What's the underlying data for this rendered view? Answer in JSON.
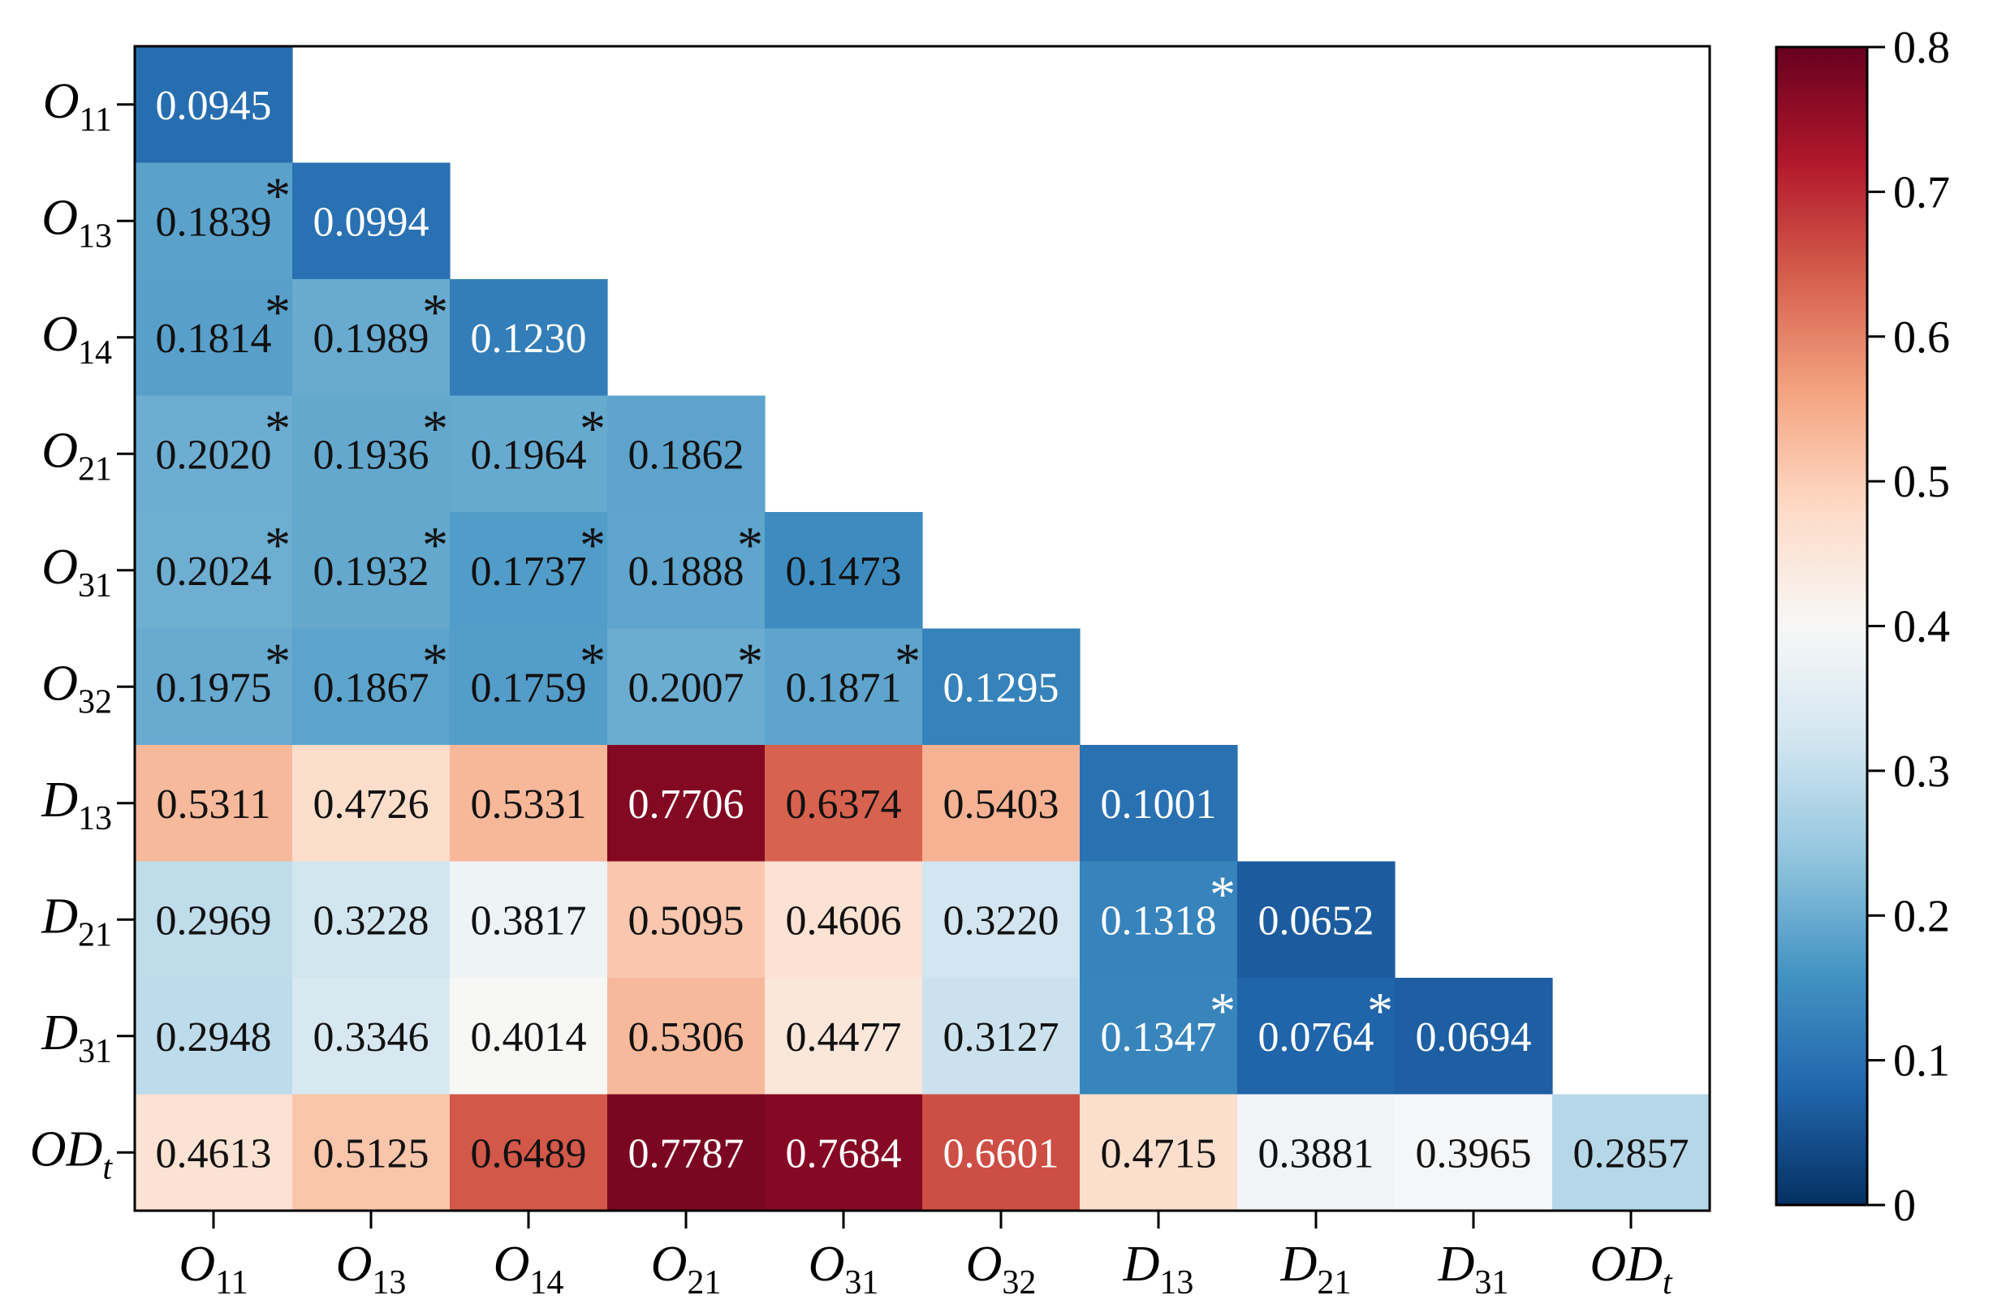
{
  "chart_data": {
    "type": "heatmap",
    "title": "",
    "xlabel": "",
    "ylabel": "",
    "row_labels": [
      {
        "main": "O",
        "sub": "11"
      },
      {
        "main": "O",
        "sub": "13"
      },
      {
        "main": "O",
        "sub": "14"
      },
      {
        "main": "O",
        "sub": "21"
      },
      {
        "main": "O",
        "sub": "31"
      },
      {
        "main": "O",
        "sub": "32"
      },
      {
        "main": "D",
        "sub": "13"
      },
      {
        "main": "D",
        "sub": "21"
      },
      {
        "main": "D",
        "sub": "31"
      },
      {
        "main": "OD",
        "sub": "t"
      }
    ],
    "col_labels": [
      {
        "main": "O",
        "sub": "11"
      },
      {
        "main": "O",
        "sub": "13"
      },
      {
        "main": "O",
        "sub": "14"
      },
      {
        "main": "O",
        "sub": "21"
      },
      {
        "main": "O",
        "sub": "31"
      },
      {
        "main": "O",
        "sub": "32"
      },
      {
        "main": "D",
        "sub": "13"
      },
      {
        "main": "D",
        "sub": "21"
      },
      {
        "main": "D",
        "sub": "31"
      },
      {
        "main": "OD",
        "sub": "t"
      }
    ],
    "values": [
      [
        "0.0945"
      ],
      [
        "0.1839",
        "0.0994"
      ],
      [
        "0.1814",
        "0.1989",
        "0.1230"
      ],
      [
        "0.2020",
        "0.1936",
        "0.1964",
        "0.1862"
      ],
      [
        "0.2024",
        "0.1932",
        "0.1737",
        "0.1888",
        "0.1473"
      ],
      [
        "0.1975",
        "0.1867",
        "0.1759",
        "0.2007",
        "0.1871",
        "0.1295"
      ],
      [
        "0.5311",
        "0.4726",
        "0.5331",
        "0.7706",
        "0.6374",
        "0.5403",
        "0.1001"
      ],
      [
        "0.2969",
        "0.3228",
        "0.3817",
        "0.5095",
        "0.4606",
        "0.3220",
        "0.1318",
        "0.0652"
      ],
      [
        "0.2948",
        "0.3346",
        "0.4014",
        "0.5306",
        "0.4477",
        "0.3127",
        "0.1347",
        "0.0764",
        "0.0694"
      ],
      [
        "0.4613",
        "0.5125",
        "0.6489",
        "0.7787",
        "0.7684",
        "0.6601",
        "0.4715",
        "0.3881",
        "0.3965",
        "0.2857"
      ]
    ],
    "significance_marker": "*",
    "significant_cells": [
      [
        1,
        0
      ],
      [
        2,
        0
      ],
      [
        2,
        1
      ],
      [
        3,
        0
      ],
      [
        3,
        1
      ],
      [
        3,
        2
      ],
      [
        4,
        0
      ],
      [
        4,
        1
      ],
      [
        4,
        2
      ],
      [
        4,
        3
      ],
      [
        5,
        0
      ],
      [
        5,
        1
      ],
      [
        5,
        2
      ],
      [
        5,
        3
      ],
      [
        5,
        4
      ],
      [
        7,
        6
      ],
      [
        8,
        6
      ],
      [
        8,
        7
      ]
    ],
    "colorbar": {
      "vmin": 0,
      "vmax": 0.8,
      "ticks": [
        "0",
        "0.1",
        "0.2",
        "0.3",
        "0.4",
        "0.5",
        "0.6",
        "0.7",
        "0.8"
      ],
      "colormap": "RdBu_r",
      "colors": [
        "#053061",
        "#2166ac",
        "#4393c3",
        "#92c5de",
        "#d1e5f0",
        "#f7f7f7",
        "#fddbc7",
        "#f4a582",
        "#d6604d",
        "#b2182b",
        "#67001f"
      ]
    }
  }
}
